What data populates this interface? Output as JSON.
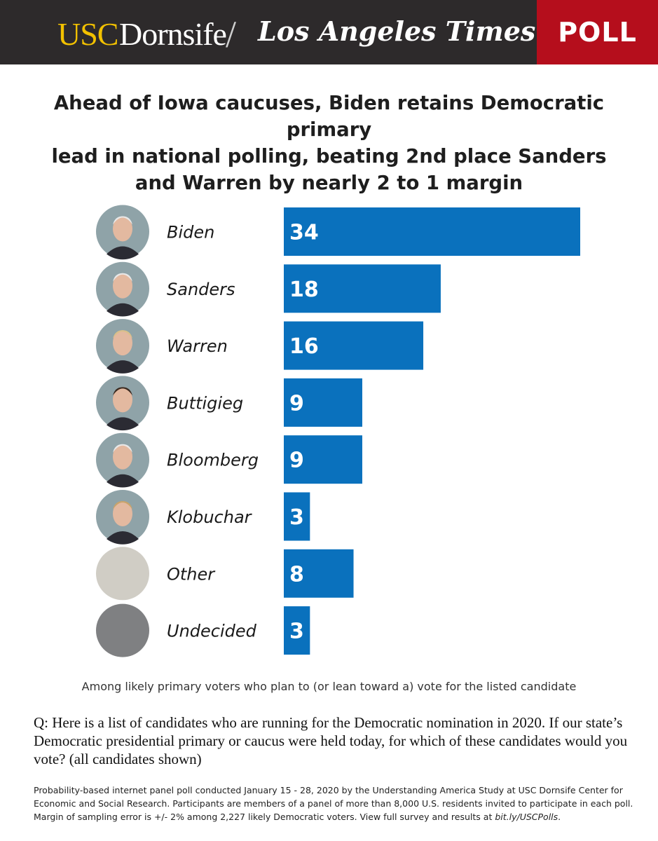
{
  "header": {
    "brand_usc": "USC",
    "brand_dornsife": "Dornsife",
    "brand_separator": "/",
    "brand_lat": "Los Angeles Times",
    "badge": "POLL"
  },
  "title": {
    "line1": "Ahead of Iowa caucuses, Biden retains Democratic primary",
    "line2": "lead in national polling, beating 2nd place Sanders",
    "line3": "and Warren by nearly 2 to 1 margin"
  },
  "colors": {
    "bar": "#0a71bd",
    "header_bg": "#2d2a2b",
    "badge_bg": "#b50e1c",
    "usc_gold": "#f2c100",
    "avatar_other": "#d0cdc5",
    "avatar_undecided": "#7f8082",
    "avatar_photo_bg": "#8fa3a8"
  },
  "chart_data": {
    "type": "bar",
    "orientation": "horizontal",
    "categories": [
      "Biden",
      "Sanders",
      "Warren",
      "Buttigieg",
      "Bloomberg",
      "Klobuchar",
      "Other",
      "Undecided"
    ],
    "values": [
      34,
      18,
      16,
      9,
      9,
      3,
      8,
      3
    ],
    "data_labels": [
      "34",
      "18",
      "16",
      "9",
      "9",
      "3",
      "8",
      "3"
    ],
    "avatars": [
      "photo",
      "photo",
      "photo",
      "photo",
      "photo",
      "photo",
      "plain-light",
      "plain-dark"
    ],
    "title": "Ahead of Iowa caucuses, Biden retains Democratic primary lead in national polling, beating 2nd place Sanders and Warren by nearly 2 to 1 margin",
    "xlim": [
      0,
      34
    ],
    "grid": false
  },
  "caption": "Among likely primary voters who plan to (or lean toward a) vote for the listed candidate",
  "question": "Q: Here is a list of candidates who are running for the Democratic nomination in 2020. If our state’s Democratic presidential primary or caucus were held today, for which of these candidates would you vote? (all candidates shown)",
  "footnote": {
    "text": "Probability-based internet panel poll conducted January 15 - 28, 2020 by the Understanding America Study at USC Dornsife Center for Economic and Social Research. Participants are members of a panel of more than 8,000 U.S. residents invited to participate in each poll. Margin of sampling error is +/- 2% among 2,227 likely Democratic voters. View full survey and results at ",
    "link": "bit.ly/USCPolls",
    "end": "."
  }
}
